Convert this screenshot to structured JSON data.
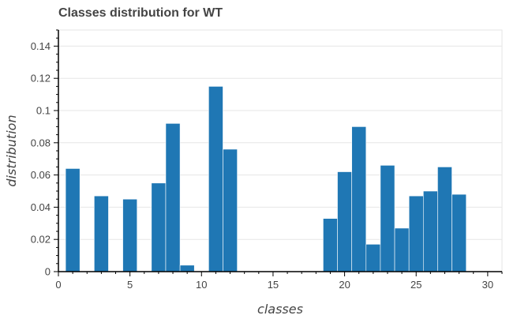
{
  "chart_data": {
    "type": "bar",
    "title": "Classes distribution for WT",
    "xlabel": "classes",
    "ylabel": "distribution",
    "xlim": [
      0,
      31
    ],
    "ylim": [
      0,
      0.15
    ],
    "x_ticks": [
      0,
      5,
      10,
      15,
      20,
      25,
      30
    ],
    "y_ticks": [
      0,
      0.02,
      0.04,
      0.06,
      0.08,
      0.1,
      0.12,
      0.14
    ],
    "y_tick_labels": [
      "0",
      "0.02",
      "0.04",
      "0.06",
      "0.08",
      "0.1",
      "0.12",
      "0.14"
    ],
    "bar_width": 1,
    "grid": true,
    "bar_color": "#1f77b4",
    "bars": [
      {
        "x": 1,
        "value": 0.064
      },
      {
        "x": 3,
        "value": 0.047
      },
      {
        "x": 5,
        "value": 0.045
      },
      {
        "x": 7,
        "value": 0.055
      },
      {
        "x": 8,
        "value": 0.092
      },
      {
        "x": 9,
        "value": 0.004
      },
      {
        "x": 11,
        "value": 0.115
      },
      {
        "x": 12,
        "value": 0.076
      },
      {
        "x": 19,
        "value": 0.033
      },
      {
        "x": 20,
        "value": 0.062
      },
      {
        "x": 21,
        "value": 0.09
      },
      {
        "x": 22,
        "value": 0.017
      },
      {
        "x": 23,
        "value": 0.066
      },
      {
        "x": 24,
        "value": 0.027
      },
      {
        "x": 25,
        "value": 0.047
      },
      {
        "x": 26,
        "value": 0.05
      },
      {
        "x": 27,
        "value": 0.065
      },
      {
        "x": 28,
        "value": 0.048
      }
    ]
  }
}
